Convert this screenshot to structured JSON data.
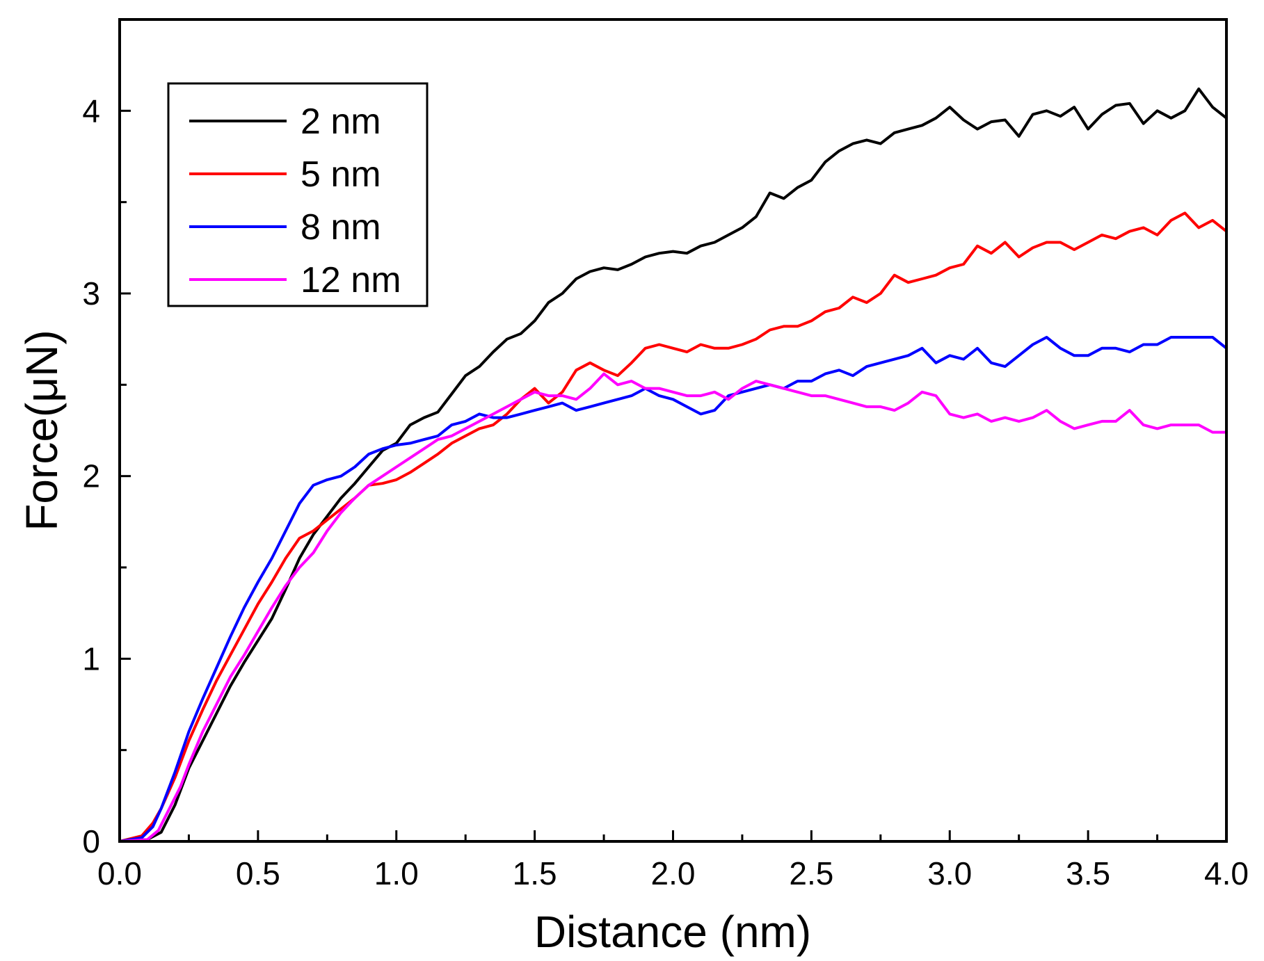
{
  "chart_data": {
    "type": "line",
    "title": "",
    "xlabel": "Distance (nm)",
    "ylabel": "Force(μN)",
    "xlim": [
      0,
      4
    ],
    "ylim": [
      0,
      4.5
    ],
    "x_ticks": [
      "0.0",
      "0.5",
      "1.0",
      "1.5",
      "2.0",
      "2.5",
      "3.0",
      "3.5",
      "4.0"
    ],
    "y_ticks": [
      "0",
      "1",
      "2",
      "3",
      "4"
    ],
    "legend_position": "top-left",
    "series": [
      {
        "name": "2 nm",
        "color": "#000000",
        "x": [
          0,
          0.1,
          0.15,
          0.2,
          0.25,
          0.3,
          0.35,
          0.4,
          0.45,
          0.5,
          0.55,
          0.6,
          0.65,
          0.7,
          0.75,
          0.8,
          0.85,
          0.9,
          0.95,
          1.0,
          1.05,
          1.1,
          1.15,
          1.2,
          1.25,
          1.3,
          1.35,
          1.4,
          1.45,
          1.5,
          1.55,
          1.6,
          1.65,
          1.7,
          1.75,
          1.8,
          1.85,
          1.9,
          1.95,
          2.0,
          2.05,
          2.1,
          2.15,
          2.2,
          2.25,
          2.3,
          2.35,
          2.4,
          2.45,
          2.5,
          2.55,
          2.6,
          2.65,
          2.7,
          2.75,
          2.8,
          2.85,
          2.9,
          2.95,
          3.0,
          3.05,
          3.1,
          3.15,
          3.2,
          3.25,
          3.3,
          3.35,
          3.4,
          3.45,
          3.5,
          3.55,
          3.6,
          3.65,
          3.7,
          3.75,
          3.8,
          3.85,
          3.9,
          3.95,
          4.0
        ],
        "y": [
          0,
          0.01,
          0.05,
          0.2,
          0.4,
          0.55,
          0.7,
          0.85,
          0.98,
          1.1,
          1.22,
          1.38,
          1.55,
          1.68,
          1.78,
          1.88,
          1.96,
          2.05,
          2.14,
          2.18,
          2.28,
          2.32,
          2.35,
          2.45,
          2.55,
          2.6,
          2.68,
          2.75,
          2.78,
          2.85,
          2.95,
          3.0,
          3.08,
          3.12,
          3.14,
          3.13,
          3.16,
          3.2,
          3.22,
          3.23,
          3.22,
          3.26,
          3.28,
          3.32,
          3.36,
          3.42,
          3.55,
          3.52,
          3.58,
          3.62,
          3.72,
          3.78,
          3.82,
          3.84,
          3.82,
          3.88,
          3.9,
          3.92,
          3.96,
          4.02,
          3.95,
          3.9,
          3.94,
          3.95,
          3.86,
          3.98,
          4.0,
          3.97,
          4.02,
          3.9,
          3.98,
          4.03,
          4.04,
          3.93,
          4.0,
          3.96,
          4.0,
          4.12,
          4.02,
          3.96
        ]
      },
      {
        "name": "5 nm",
        "color": "#ff0000",
        "x": [
          0,
          0.08,
          0.12,
          0.15,
          0.2,
          0.25,
          0.3,
          0.35,
          0.4,
          0.45,
          0.5,
          0.55,
          0.6,
          0.65,
          0.7,
          0.75,
          0.8,
          0.85,
          0.9,
          0.95,
          1.0,
          1.05,
          1.1,
          1.15,
          1.2,
          1.25,
          1.3,
          1.35,
          1.4,
          1.45,
          1.5,
          1.55,
          1.6,
          1.65,
          1.7,
          1.75,
          1.8,
          1.85,
          1.9,
          1.95,
          2.0,
          2.05,
          2.1,
          2.15,
          2.2,
          2.25,
          2.3,
          2.35,
          2.4,
          2.45,
          2.5,
          2.55,
          2.6,
          2.65,
          2.7,
          2.75,
          2.8,
          2.85,
          2.9,
          2.95,
          3.0,
          3.05,
          3.1,
          3.15,
          3.2,
          3.25,
          3.3,
          3.35,
          3.4,
          3.45,
          3.5,
          3.55,
          3.6,
          3.65,
          3.7,
          3.75,
          3.8,
          3.85,
          3.9,
          3.95,
          4.0
        ],
        "y": [
          0,
          0.03,
          0.1,
          0.18,
          0.35,
          0.55,
          0.72,
          0.88,
          1.02,
          1.16,
          1.3,
          1.42,
          1.55,
          1.66,
          1.7,
          1.76,
          1.82,
          1.88,
          1.95,
          1.96,
          1.98,
          2.02,
          2.07,
          2.12,
          2.18,
          2.22,
          2.26,
          2.28,
          2.34,
          2.42,
          2.48,
          2.4,
          2.46,
          2.58,
          2.62,
          2.58,
          2.55,
          2.62,
          2.7,
          2.72,
          2.7,
          2.68,
          2.72,
          2.7,
          2.7,
          2.72,
          2.75,
          2.8,
          2.82,
          2.82,
          2.85,
          2.9,
          2.92,
          2.98,
          2.95,
          3.0,
          3.1,
          3.06,
          3.08,
          3.1,
          3.14,
          3.16,
          3.26,
          3.22,
          3.28,
          3.2,
          3.25,
          3.28,
          3.28,
          3.24,
          3.28,
          3.32,
          3.3,
          3.34,
          3.36,
          3.32,
          3.4,
          3.44,
          3.36,
          3.4,
          3.34
        ]
      },
      {
        "name": "8 nm",
        "color": "#0000ff",
        "x": [
          0,
          0.08,
          0.12,
          0.15,
          0.2,
          0.25,
          0.3,
          0.35,
          0.4,
          0.45,
          0.5,
          0.55,
          0.6,
          0.65,
          0.7,
          0.75,
          0.8,
          0.85,
          0.9,
          0.95,
          1.0,
          1.05,
          1.1,
          1.15,
          1.2,
          1.25,
          1.3,
          1.35,
          1.4,
          1.45,
          1.5,
          1.55,
          1.6,
          1.65,
          1.7,
          1.75,
          1.8,
          1.85,
          1.9,
          1.95,
          2.0,
          2.05,
          2.1,
          2.15,
          2.2,
          2.25,
          2.3,
          2.35,
          2.4,
          2.45,
          2.5,
          2.55,
          2.6,
          2.65,
          2.7,
          2.75,
          2.8,
          2.85,
          2.9,
          2.95,
          3.0,
          3.05,
          3.1,
          3.15,
          3.2,
          3.25,
          3.3,
          3.35,
          3.4,
          3.45,
          3.5,
          3.55,
          3.6,
          3.65,
          3.7,
          3.75,
          3.8,
          3.85,
          3.9,
          3.95,
          4.0
        ],
        "y": [
          0,
          0.02,
          0.08,
          0.18,
          0.38,
          0.6,
          0.78,
          0.95,
          1.12,
          1.28,
          1.42,
          1.55,
          1.7,
          1.85,
          1.95,
          1.98,
          2.0,
          2.05,
          2.12,
          2.15,
          2.17,
          2.18,
          2.2,
          2.22,
          2.28,
          2.3,
          2.34,
          2.32,
          2.32,
          2.34,
          2.36,
          2.38,
          2.4,
          2.36,
          2.38,
          2.4,
          2.42,
          2.44,
          2.48,
          2.44,
          2.42,
          2.38,
          2.34,
          2.36,
          2.44,
          2.46,
          2.48,
          2.5,
          2.48,
          2.52,
          2.52,
          2.56,
          2.58,
          2.55,
          2.6,
          2.62,
          2.64,
          2.66,
          2.7,
          2.62,
          2.66,
          2.64,
          2.7,
          2.62,
          2.6,
          2.66,
          2.72,
          2.76,
          2.7,
          2.66,
          2.66,
          2.7,
          2.7,
          2.68,
          2.72,
          2.72,
          2.76,
          2.76,
          2.76,
          2.76,
          2.7
        ]
      },
      {
        "name": "12 nm",
        "color": "#ff00ff",
        "x": [
          0,
          0.1,
          0.14,
          0.18,
          0.22,
          0.25,
          0.3,
          0.35,
          0.4,
          0.45,
          0.5,
          0.55,
          0.6,
          0.65,
          0.7,
          0.75,
          0.8,
          0.85,
          0.9,
          0.95,
          1.0,
          1.05,
          1.1,
          1.15,
          1.2,
          1.25,
          1.3,
          1.35,
          1.4,
          1.45,
          1.5,
          1.55,
          1.6,
          1.65,
          1.7,
          1.75,
          1.8,
          1.85,
          1.9,
          1.95,
          2.0,
          2.05,
          2.1,
          2.15,
          2.2,
          2.25,
          2.3,
          2.35,
          2.4,
          2.45,
          2.5,
          2.55,
          2.6,
          2.65,
          2.7,
          2.75,
          2.8,
          2.85,
          2.9,
          2.95,
          3.0,
          3.05,
          3.1,
          3.15,
          3.2,
          3.25,
          3.3,
          3.35,
          3.4,
          3.45,
          3.5,
          3.55,
          3.6,
          3.65,
          3.7,
          3.75,
          3.8,
          3.85,
          3.9,
          3.95,
          4.0
        ],
        "y": [
          0,
          0.01,
          0.06,
          0.18,
          0.3,
          0.42,
          0.6,
          0.75,
          0.9,
          1.02,
          1.15,
          1.28,
          1.4,
          1.5,
          1.58,
          1.7,
          1.8,
          1.88,
          1.95,
          2.0,
          2.05,
          2.1,
          2.15,
          2.2,
          2.22,
          2.26,
          2.3,
          2.34,
          2.38,
          2.42,
          2.46,
          2.44,
          2.44,
          2.42,
          2.48,
          2.56,
          2.5,
          2.52,
          2.48,
          2.48,
          2.46,
          2.44,
          2.44,
          2.46,
          2.42,
          2.48,
          2.52,
          2.5,
          2.48,
          2.46,
          2.44,
          2.44,
          2.42,
          2.4,
          2.38,
          2.38,
          2.36,
          2.4,
          2.46,
          2.44,
          2.34,
          2.32,
          2.34,
          2.3,
          2.32,
          2.3,
          2.32,
          2.36,
          2.3,
          2.26,
          2.28,
          2.3,
          2.3,
          2.36,
          2.28,
          2.26,
          2.28,
          2.28,
          2.28,
          2.24,
          2.24
        ]
      }
    ]
  }
}
